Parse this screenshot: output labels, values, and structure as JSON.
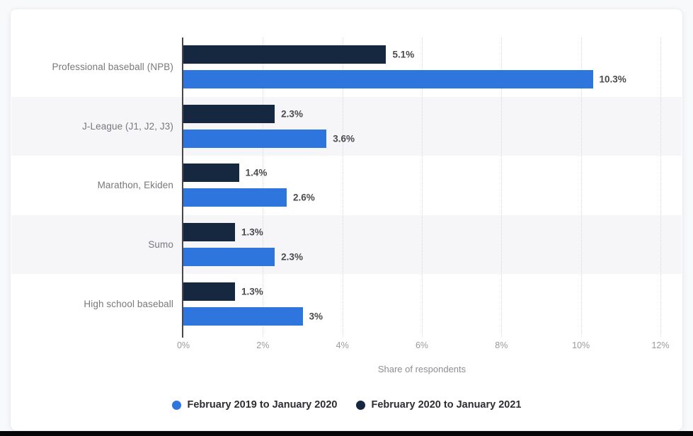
{
  "chart_data": {
    "type": "bar",
    "orientation": "horizontal",
    "categories": [
      "Professional baseball (NPB)",
      "J-League (J1, J2, J3)",
      "Marathon, Ekiden",
      "Sumo",
      "High school baseball"
    ],
    "series": [
      {
        "name": "February 2019 to January 2020",
        "color": "#2e76dd",
        "values": [
          10.3,
          3.6,
          2.6,
          2.3,
          3
        ],
        "labels": [
          "10.3%",
          "3.6%",
          "2.6%",
          "2.3%",
          "3%"
        ]
      },
      {
        "name": "February 2020 to January 2021",
        "color": "#15283f",
        "values": [
          5.1,
          2.3,
          1.4,
          1.3,
          1.3
        ],
        "labels": [
          "5.1%",
          "2.3%",
          "1.4%",
          "1.3%",
          "1.3%"
        ]
      }
    ],
    "xlabel": "Share of respondents",
    "x_ticks": [
      "0%",
      "2%",
      "4%",
      "6%",
      "8%",
      "10%",
      "12%"
    ],
    "xlim": [
      0,
      12
    ],
    "grid": "vertical-dotted",
    "legend_position": "bottom",
    "stripe_color": "#f6f6f8",
    "background_color": "#ffffff",
    "page_background": "#f8f9fb"
  }
}
